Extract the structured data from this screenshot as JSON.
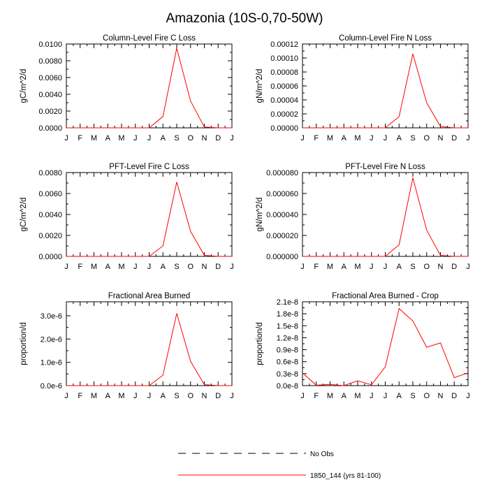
{
  "figure": {
    "title": "Amazonia (10S-0,70-50W)"
  },
  "months": [
    "J",
    "F",
    "M",
    "A",
    "M",
    "J",
    "J",
    "A",
    "S",
    "O",
    "N",
    "D",
    "J"
  ],
  "chart_data": [
    {
      "type": "line",
      "title": "Column-Level Fire C Loss",
      "ylabel": "gC/m^2/d",
      "xlabel": "",
      "ylim": [
        0,
        0.01
      ],
      "yticks": [
        0,
        0.002,
        0.004,
        0.006,
        0.008,
        0.01
      ],
      "ytick_labels": [
        "0.0000",
        "0.0020",
        "0.0040",
        "0.0060",
        "0.0080",
        "0.0100"
      ],
      "series": [
        {
          "name": "1850_144 (yrs 81-100)",
          "values": [
            0,
            0,
            0,
            0,
            0,
            0,
            0,
            0.00135,
            0.0095,
            0.0032,
            0.0001,
            0,
            0
          ]
        }
      ]
    },
    {
      "type": "line",
      "title": "Column-Level Fire N Loss",
      "ylabel": "gN/m^2/d",
      "xlabel": "",
      "ylim": [
        0,
        0.00012
      ],
      "yticks": [
        0,
        2e-05,
        4e-05,
        6e-05,
        8e-05,
        0.0001,
        0.00012
      ],
      "ytick_labels": [
        "0.00000",
        "0.00002",
        "0.00004",
        "0.00006",
        "0.00008",
        "0.00010",
        "0.00012"
      ],
      "series": [
        {
          "name": "1850_144 (yrs 81-100)",
          "values": [
            0,
            0,
            0,
            0,
            0,
            0,
            0,
            1.6e-05,
            0.000106,
            3.6e-05,
            2e-06,
            0,
            0
          ]
        }
      ]
    },
    {
      "type": "line",
      "title": "PFT-Level Fire C Loss",
      "ylabel": "gC/m^2/d",
      "xlabel": "",
      "ylim": [
        0,
        0.008
      ],
      "yticks": [
        0,
        0.002,
        0.004,
        0.006,
        0.008
      ],
      "ytick_labels": [
        "0.0000",
        "0.0020",
        "0.0040",
        "0.0060",
        "0.0080"
      ],
      "series": [
        {
          "name": "1850_144 (yrs 81-100)",
          "values": [
            0,
            0,
            0,
            0,
            0,
            0,
            0,
            0.001,
            0.0071,
            0.0024,
            0.0001,
            0,
            0
          ]
        }
      ]
    },
    {
      "type": "line",
      "title": "PFT-Level Fire N Loss",
      "ylabel": "gN/m^2/d",
      "xlabel": "",
      "ylim": [
        0,
        8e-05
      ],
      "yticks": [
        0,
        2e-05,
        4e-05,
        6e-05,
        8e-05
      ],
      "ytick_labels": [
        "0.000000",
        "0.000020",
        "0.000040",
        "0.000060",
        "0.000080"
      ],
      "series": [
        {
          "name": "1850_144 (yrs 81-100)",
          "values": [
            0,
            0,
            0,
            0,
            0,
            0,
            0,
            1.1e-05,
            7.5e-05,
            2.5e-05,
            1e-06,
            0,
            0
          ]
        }
      ]
    },
    {
      "type": "line",
      "title": "Fractional Area Burned",
      "ylabel": "proportion/d",
      "xlabel": "",
      "ylim": [
        0,
        3.6e-06
      ],
      "yticks": [
        0,
        1e-06,
        2e-06,
        3e-06
      ],
      "ytick_labels": [
        "0.0e-6",
        "1.0e-6",
        "2.0e-6",
        "3.0e-6"
      ],
      "series": [
        {
          "name": "1850_144 (yrs 81-100)",
          "values": [
            0,
            0,
            0,
            0,
            0,
            0,
            0,
            4.5e-07,
            3.1e-06,
            1.05e-06,
            4e-08,
            0,
            0
          ]
        }
      ]
    },
    {
      "type": "line",
      "title": "Fractional Area Burned - Crop",
      "ylabel": "proportion/d",
      "xlabel": "",
      "ylim": [
        0,
        2.1e-08
      ],
      "yticks": [
        0,
        3e-09,
        6e-09,
        9e-09,
        1.2e-08,
        1.5e-08,
        1.8e-08,
        2.1e-08
      ],
      "ytick_labels": [
        "0.0e-8",
        "0.3e-8",
        "0.6e-8",
        "0.9e-8",
        "1.2e-8",
        "1.5e-8",
        "1.8e-8",
        "2.1e-8"
      ],
      "series": [
        {
          "name": "1850_144 (yrs 81-100)",
          "values": [
            3.2e-09,
            1e-10,
            3e-10,
            0,
            1.2e-09,
            2e-10,
            4.7e-09,
            1.93e-08,
            1.62e-08,
            9.6e-09,
            1.07e-08,
            2e-09,
            3.2e-09
          ]
        }
      ]
    }
  ],
  "legend": {
    "entries": [
      {
        "label": "No Obs",
        "style": "dashed",
        "color": "#000000"
      },
      {
        "label": "1850_144 (yrs 81-100)",
        "style": "solid",
        "color": "#ff0000"
      }
    ]
  },
  "colors": {
    "series": "#ff0000",
    "axis": "#000000"
  }
}
